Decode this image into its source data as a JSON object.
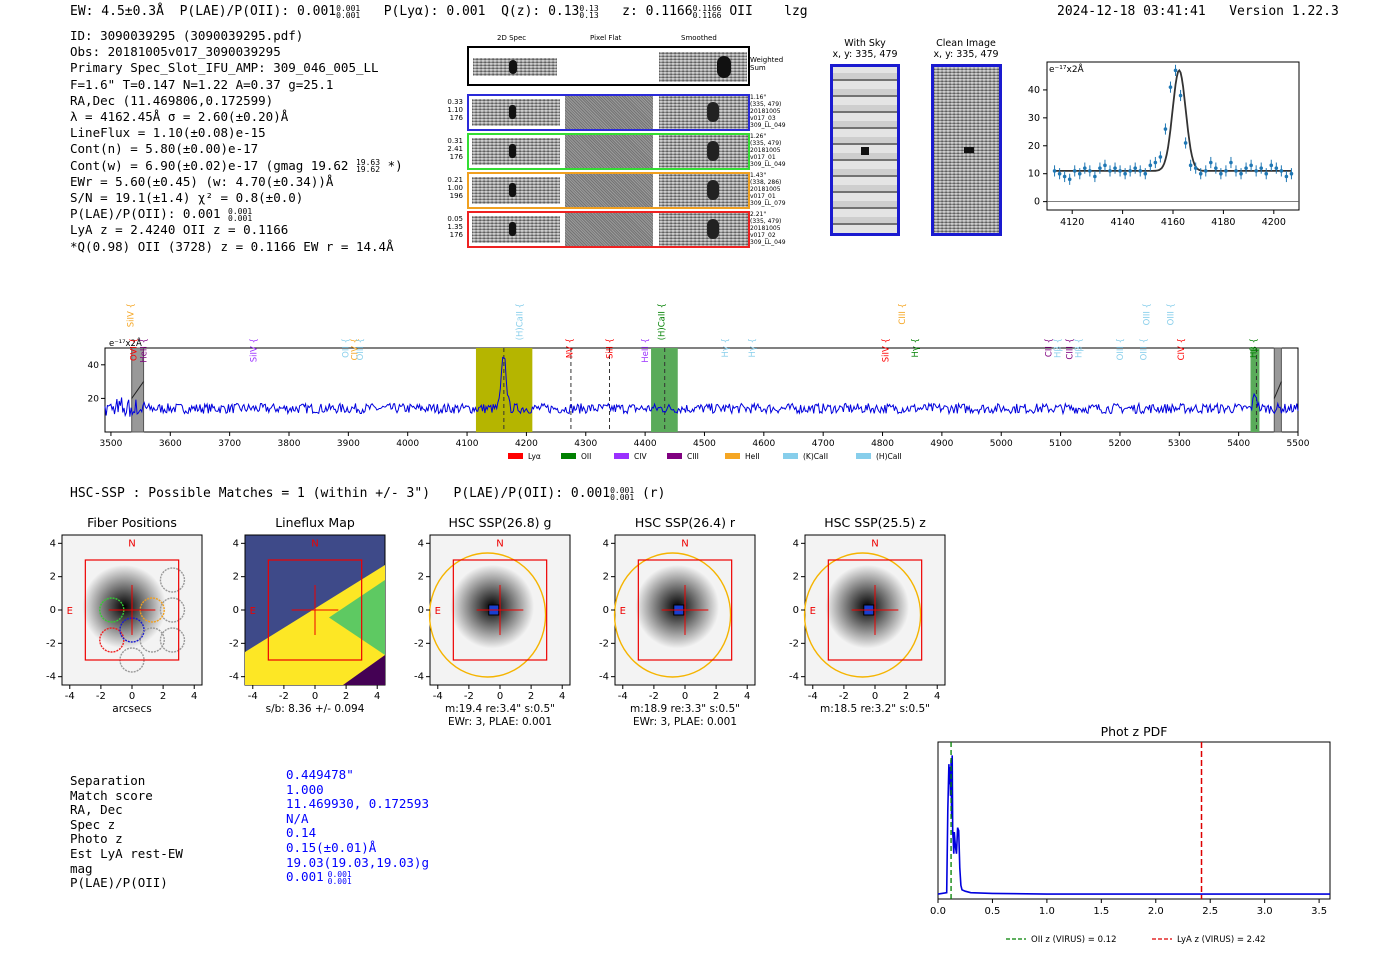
{
  "header": {
    "ew": "EW: 4.5±0.3Å",
    "plae_label": "P(LAE)/P(OII): 0.001",
    "plae_up": "0.001",
    "plae_dn": "0.001",
    "plya": "P(Lyα): 0.001",
    "qz_label": "Q(z): 0.13",
    "qz_up": "0.13",
    "qz_dn": "0.13",
    "z_label": "z: 0.1166",
    "z_up": "0.1166",
    "z_dn": "0.1166",
    "line": "OII",
    "tag": "lzg",
    "datetime": "2024-12-18 03:41:41",
    "version": "Version 1.22.3"
  },
  "info": {
    "id": "ID: 3090039295 (3090039295.pdf)",
    "obs": "Obs: 20181005v017_3090039295",
    "primary": "Primary Spec_Slot_IFU_AMP: 309_046_005_LL",
    "params": "F=1.6\"  T=0.147  N=1.22  A=0.37  g=25.1",
    "radec": "RA,Dec (11.469806,0.172599)",
    "lambda": "λ = 4162.45Å  σ = 2.60(±0.20)Å",
    "lineflux": "LineFlux = 1.10(±0.08)e-15",
    "contn": "Cont(n) = 5.80(±0.00)e-17",
    "contw": "Cont(w) = 6.90(±0.02)e-17 (gmag 19.62",
    "contw_up": "19.63",
    "contw_dn": "19.62",
    "contw_end": "*)",
    "ewr": "EWr = 5.60(±0.45) (w: 4.70(±0.34))Å",
    "sn": "S/N = 19.1(±1.4)  χ² = 0.8(±0.0)",
    "plae": "P(LAE)/P(OII): 0.001",
    "plae_up": "0.001",
    "plae_dn": "0.001",
    "lya": "LyA z = 2.4240  OII z = 0.1166",
    "q": "*Q(0.98) OII (3728) z = 0.1166  EW r = 14.4Å"
  },
  "cutouts": {
    "col_2d": "2D Spec",
    "col_flat": "Pixel Flat",
    "col_smooth": "Smoothed",
    "weighted": "Weighted Sum",
    "rows": [
      {
        "nums": [
          "0.33",
          "1.10",
          "176"
        ],
        "color": "#2a2ad8",
        "side": [
          "1.16\"",
          "(335, 479)",
          "20181005",
          "v017_03",
          "309_LL_049"
        ]
      },
      {
        "nums": [
          "0.31",
          "2.41",
          "176"
        ],
        "color": "#33dd33",
        "side": [
          "1.26\"",
          "(335, 479)",
          "20181005",
          "v017_01",
          "309_LL_049"
        ]
      },
      {
        "nums": [
          "0.21",
          "1.00",
          "196"
        ],
        "color": "#f0a020",
        "side": [
          "1.43\"",
          "(338, 286)",
          "20181005",
          "v017_01",
          "309_LL_079"
        ]
      },
      {
        "nums": [
          "0.05",
          "1.35",
          "176"
        ],
        "color": "#ee2222",
        "side": [
          "2.21\"",
          "(335, 479)",
          "20181005",
          "v017_02",
          "309_LL_049"
        ]
      }
    ]
  },
  "skyimg": {
    "with_sky": "With Sky",
    "with_sky_xy": "x, y: 335, 479",
    "clean": "Clean Image",
    "clean_xy": "x, y: 335, 479"
  },
  "zoom_chart": {
    "type": "line",
    "unit_label": "e⁻¹⁷x2Å",
    "xlim": [
      4110,
      4210
    ],
    "ylim": [
      -3,
      50
    ],
    "xticks": [
      4120,
      4140,
      4160,
      4180,
      4200
    ],
    "yticks": [
      0,
      10,
      20,
      30,
      40
    ],
    "points_x": [
      4113,
      4115,
      4117,
      4119,
      4121,
      4123,
      4125,
      4127,
      4129,
      4131,
      4133,
      4135,
      4137,
      4139,
      4141,
      4143,
      4145,
      4147,
      4149,
      4151,
      4153,
      4155,
      4157,
      4159,
      4161,
      4163,
      4165,
      4167,
      4169,
      4171,
      4173,
      4175,
      4177,
      4179,
      4181,
      4183,
      4185,
      4187,
      4189,
      4191,
      4193,
      4195,
      4197,
      4199,
      4201,
      4203,
      4205,
      4207
    ],
    "points_y": [
      11,
      10,
      9,
      8,
      11,
      10,
      12,
      11,
      9,
      12,
      13,
      11,
      12,
      11,
      10,
      11,
      12,
      11,
      10,
      13,
      14,
      16,
      26,
      41,
      47,
      38,
      21,
      13,
      12,
      10,
      11,
      14,
      12,
      10,
      11,
      14,
      11,
      10,
      12,
      13,
      11,
      12,
      10,
      13,
      12,
      11,
      9,
      10
    ],
    "fit_color": "#333333",
    "point_color": "#1f77b4"
  },
  "spectrum": {
    "unit_label": "e⁻¹⁷x2Å",
    "xlim": [
      3490,
      5500
    ],
    "ylim": [
      0,
      50
    ],
    "xticks": [
      3500,
      3600,
      3700,
      3800,
      3900,
      4000,
      4100,
      4200,
      4300,
      4400,
      4500,
      4600,
      4700,
      4800,
      4900,
      5000,
      5100,
      5200,
      5300,
      5400,
      5500
    ],
    "yticks": [
      20,
      40
    ],
    "line_color": "#0000dd",
    "legend": [
      {
        "label": "Lyα",
        "color": "#ff0000"
      },
      {
        "label": "OII",
        "color": "#008000"
      },
      {
        "label": "CIV",
        "color": "#9b30ff"
      },
      {
        "label": "CIII",
        "color": "#800080"
      },
      {
        "label": "HeII",
        "color": "#f5a623"
      },
      {
        "label": "(K)CaII",
        "color": "#87ceeb"
      },
      {
        "label": "(H)CaII",
        "color": "#87ceeb"
      }
    ],
    "line_labels": [
      {
        "w": 3538,
        "label": "SiIV",
        "color": "#f5a623",
        "row": 0
      },
      {
        "w": 3543,
        "label": "OVI",
        "color": "#ff0000",
        "row": 1
      },
      {
        "w": 3560,
        "label": "HeII",
        "color": "#800080",
        "row": 1
      },
      {
        "w": 3745,
        "label": "SiIV",
        "color": "#9b30ff",
        "row": 1
      },
      {
        "w": 3900,
        "label": "OII",
        "color": "#87ceeb",
        "row": 1
      },
      {
        "w": 3915,
        "label": "CIV",
        "color": "#f5a623",
        "row": 1
      },
      {
        "w": 3925,
        "label": "OIII",
        "color": "#87ceeb",
        "row": 1
      },
      {
        "w": 4193,
        "label": "(H)CaII",
        "color": "#87ceeb",
        "row": 0
      },
      {
        "w": 4278,
        "label": "NV",
        "color": "#ff0000",
        "row": 1
      },
      {
        "w": 4345,
        "label": "SiII",
        "color": "#ff0000",
        "row": 1
      },
      {
        "w": 4405,
        "label": "HeII",
        "color": "#9b30ff",
        "row": 1
      },
      {
        "w": 4433,
        "label": "(H)CaII",
        "color": "#008000",
        "row": 0
      },
      {
        "w": 4540,
        "label": "Hγ",
        "color": "#87ceeb",
        "row": 1
      },
      {
        "w": 4585,
        "label": "Hγ",
        "color": "#87ceeb",
        "row": 1
      },
      {
        "w": 4810,
        "label": "SiIV",
        "color": "#ff0000",
        "row": 1
      },
      {
        "w": 4838,
        "label": "CIII",
        "color": "#f5a623",
        "row": 0
      },
      {
        "w": 4860,
        "label": "Hγ",
        "color": "#008000",
        "row": 1
      },
      {
        "w": 5085,
        "label": "CII",
        "color": "#800080",
        "row": 1
      },
      {
        "w": 5100,
        "label": "Hβ",
        "color": "#87ceeb",
        "row": 1
      },
      {
        "w": 5120,
        "label": "CIII",
        "color": "#800080",
        "row": 1
      },
      {
        "w": 5135,
        "label": "Hβ",
        "color": "#87ceeb",
        "row": 1
      },
      {
        "w": 5205,
        "label": "OIII",
        "color": "#87ceeb",
        "row": 1
      },
      {
        "w": 5245,
        "label": "OIII",
        "color": "#87ceeb",
        "row": 1
      },
      {
        "w": 5250,
        "label": "OIII",
        "color": "#87ceeb",
        "row": 0
      },
      {
        "w": 5290,
        "label": "OIII",
        "color": "#87ceeb",
        "row": 0
      },
      {
        "w": 5308,
        "label": "CIV",
        "color": "#ff0000",
        "row": 1
      },
      {
        "w": 5430,
        "label": "Hβ",
        "color": "#008000",
        "row": 1
      }
    ],
    "bands": [
      {
        "w0": 4115,
        "w1": 4210,
        "color": "#b5b500"
      },
      {
        "w0": 4410,
        "w1": 4455,
        "color": "#5aab5a"
      },
      {
        "w0": 5420,
        "w1": 5435,
        "color": "#5aab5a"
      }
    ],
    "masked": [
      {
        "w0": 3535,
        "w1": 3555
      },
      {
        "w0": 5460,
        "w1": 5472
      }
    ],
    "dashed": [
      4162,
      4275,
      4340,
      4433,
      5430
    ]
  },
  "hsc": {
    "summary": "HSC-SSP : Possible Matches = 1 (within +/- 3\")",
    "plae": "P(LAE)/P(OII): 0.001",
    "plae_up": "0.001",
    "plae_dn": "0.001",
    "band": "(r)",
    "panels": [
      {
        "title": "Fiber Positions",
        "xlabel": "arcsecs",
        "sub": ""
      },
      {
        "title": "Lineflux Map",
        "xlabel": "s/b: 8.36 +/- 0.094",
        "sub": ""
      },
      {
        "title": "HSC SSP(26.8) g",
        "xlabel": "m:19.4  re:3.4\"  s:0.5\"",
        "sub": "EWr: 3, PLAE: 0.001"
      },
      {
        "title": "HSC SSP(26.4) r",
        "xlabel": "m:18.9  re:3.3\"  s:0.5\"",
        "sub": "EWr: 3, PLAE: 0.001"
      },
      {
        "title": "HSC SSP(25.5) z",
        "xlabel": "m:18.5  re:3.2\"  s:0.5\"",
        "sub": ""
      }
    ],
    "ticks": [
      -4,
      -2,
      0,
      2,
      4
    ],
    "north": "N",
    "east": "E"
  },
  "match": {
    "labels": [
      "Separation",
      "Match score",
      "RA, Dec",
      "Spec z",
      "Photo z",
      "Est LyA rest-EW",
      "mag",
      "P(LAE)/P(OII)"
    ],
    "values": [
      "0.449478\"",
      "1.000",
      "11.469930, 0.172593",
      "N/A",
      "0.14",
      "0.15(±0.01)Å",
      "19.03(19.03,19.03)g",
      "0.001"
    ],
    "plae_up": "0.001",
    "plae_dn": "0.001"
  },
  "photz": {
    "type": "line",
    "title": "Phot z PDF",
    "xlim": [
      0,
      3.6
    ],
    "xticks": [
      0.0,
      0.5,
      1.0,
      1.5,
      2.0,
      2.5,
      3.0,
      3.5
    ],
    "oii_z": 0.12,
    "lya_z": 2.42,
    "legend_oii": "OII z (VIRUS) = 0.12",
    "legend_lya": "LyA z (VIRUS) = 2.42",
    "curve_x": [
      0,
      0.08,
      0.09,
      0.1,
      0.105,
      0.11,
      0.115,
      0.12,
      0.125,
      0.13,
      0.135,
      0.14,
      0.145,
      0.15,
      0.16,
      0.17,
      0.18,
      0.19,
      0.2,
      0.21,
      0.22,
      0.25,
      0.3,
      0.5,
      1.0,
      2.0,
      3.0,
      3.6
    ],
    "curve_y": [
      0.02,
      0.03,
      0.6,
      0.92,
      0.78,
      0.9,
      0.7,
      0.95,
      0.55,
      0.98,
      0.45,
      0.4,
      0.3,
      0.45,
      0.35,
      0.3,
      0.48,
      0.46,
      0.2,
      0.08,
      0.05,
      0.04,
      0.03,
      0.025,
      0.02,
      0.02,
      0.02,
      0.02
    ]
  }
}
